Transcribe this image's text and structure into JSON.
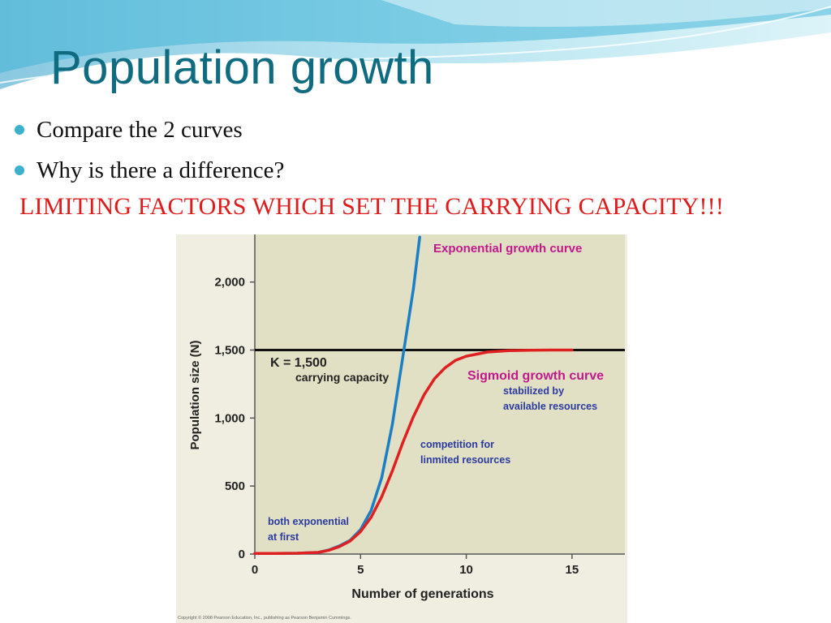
{
  "slide": {
    "title": "Population growth",
    "bullets": [
      "Compare the 2 curves",
      "Why is there a difference?"
    ],
    "emphasis": "LIMITING FACTORS WHICH SET THE CARRYING CAPACITY!!!",
    "colors": {
      "title": "#0f6b80",
      "bullet": "#3cb1cc",
      "emphasis": "#e01b1b"
    }
  },
  "chart_data": {
    "type": "line",
    "xlabel": "Number of generations",
    "ylabel": "Population size (N)",
    "xlim": [
      0,
      17.5
    ],
    "ylim": [
      0,
      2350
    ],
    "xticks": [
      0,
      5,
      10,
      15
    ],
    "yticks": [
      0,
      500,
      1000,
      1500,
      2000
    ],
    "ytick_labels": [
      "0",
      "500",
      "1,000",
      "1,500",
      "2,000"
    ],
    "grid": false,
    "carrying_capacity": {
      "value": 1500,
      "label": "K = 1,500",
      "sublabel": "carrying capacity"
    },
    "series": [
      {
        "name": "Exponential growth curve",
        "color": "#1a7fc4",
        "x": [
          0,
          1,
          2,
          3,
          3.5,
          4,
          4.5,
          5,
          5.5,
          6,
          6.5,
          7,
          7.5,
          7.8
        ],
        "y": [
          5,
          5,
          6,
          12,
          30,
          60,
          100,
          180,
          320,
          560,
          950,
          1450,
          1950,
          2330
        ]
      },
      {
        "name": "Sigmoid growth curve",
        "color": "#e02020",
        "x": [
          0,
          1,
          2,
          3,
          3.5,
          4,
          4.5,
          5,
          5.5,
          6,
          6.5,
          7,
          7.5,
          8,
          8.5,
          9,
          9.5,
          10,
          11,
          12,
          13,
          14,
          15
        ],
        "y": [
          5,
          5,
          6,
          12,
          28,
          55,
          95,
          165,
          270,
          420,
          610,
          820,
          1010,
          1170,
          1290,
          1370,
          1425,
          1455,
          1485,
          1495,
          1498,
          1500,
          1500
        ]
      }
    ],
    "annotations": [
      {
        "id": "exp",
        "text": "Exponential growth curve"
      },
      {
        "id": "sig",
        "text": "Sigmoid growth curve"
      },
      {
        "id": "stab1",
        "text": "stabilized by"
      },
      {
        "id": "stab2",
        "text": "available resources"
      },
      {
        "id": "comp1",
        "text": "competition for"
      },
      {
        "id": "comp2",
        "text": "linmited resources"
      },
      {
        "id": "both1",
        "text": "both exponential"
      },
      {
        "id": "both2",
        "text": "at first"
      }
    ],
    "credit": "Copyright © 2008 Pearson Education, Inc., publishing as Pearson Benjamin Cummings."
  }
}
